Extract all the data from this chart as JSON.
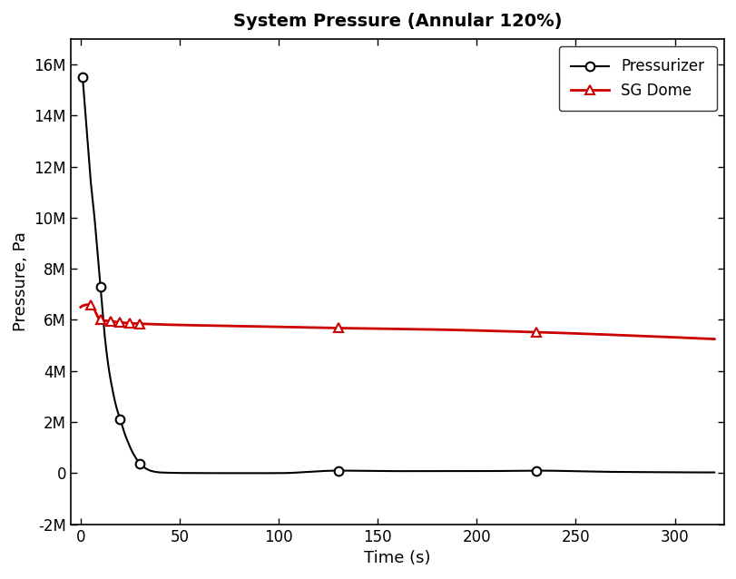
{
  "title": "System Pressure (Annular 120%)",
  "xlabel": "Time (s)",
  "ylabel": "Pressure, Pa",
  "pressurizer_line_x": [
    1,
    3,
    5,
    7,
    9,
    10,
    12,
    14,
    16,
    18,
    20,
    22,
    24,
    26,
    28,
    30,
    33,
    36,
    40,
    45,
    50,
    60,
    70,
    80,
    90,
    100,
    130,
    160,
    200,
    230,
    270,
    320
  ],
  "pressurizer_line_y": [
    15500000,
    13500000,
    11500000,
    10000000,
    8200000,
    7300000,
    5500000,
    4200000,
    3300000,
    2600000,
    2100000,
    1600000,
    1200000,
    850000,
    580000,
    380000,
    180000,
    80000,
    30000,
    15000,
    8000,
    4000,
    2000,
    1500,
    1200,
    1000,
    100000,
    80000,
    80000,
    100000,
    50000,
    30000
  ],
  "pressurizer_marker_x": [
    1,
    10,
    20,
    30,
    130,
    230
  ],
  "pressurizer_marker_y": [
    15500000,
    7300000,
    2100000,
    380000,
    100000,
    100000
  ],
  "sg_dome_line_x": [
    0,
    5,
    10,
    15,
    20,
    25,
    30,
    50,
    80,
    130,
    180,
    230,
    280,
    320
  ],
  "sg_dome_line_y": [
    6500000,
    6600000,
    6000000,
    5950000,
    5900000,
    5870000,
    5850000,
    5800000,
    5760000,
    5680000,
    5620000,
    5520000,
    5380000,
    5250000
  ],
  "sg_dome_marker_x": [
    5,
    10,
    15,
    20,
    25,
    30,
    130,
    230
  ],
  "sg_dome_marker_y": [
    6600000,
    6000000,
    5950000,
    5900000,
    5870000,
    5850000,
    5680000,
    5520000
  ],
  "xlim": [
    -5,
    325
  ],
  "ylim": [
    -2000000,
    17000000
  ],
  "yticks": [
    -2000000,
    0,
    2000000,
    4000000,
    6000000,
    8000000,
    10000000,
    12000000,
    14000000,
    16000000
  ],
  "xticks": [
    0,
    50,
    100,
    150,
    200,
    250,
    300
  ],
  "pressurizer_color": "#000000",
  "sg_dome_color": "#cc0000",
  "background_color": "#ffffff",
  "title_fontsize": 14,
  "label_fontsize": 13,
  "tick_fontsize": 12,
  "legend_fontsize": 12
}
